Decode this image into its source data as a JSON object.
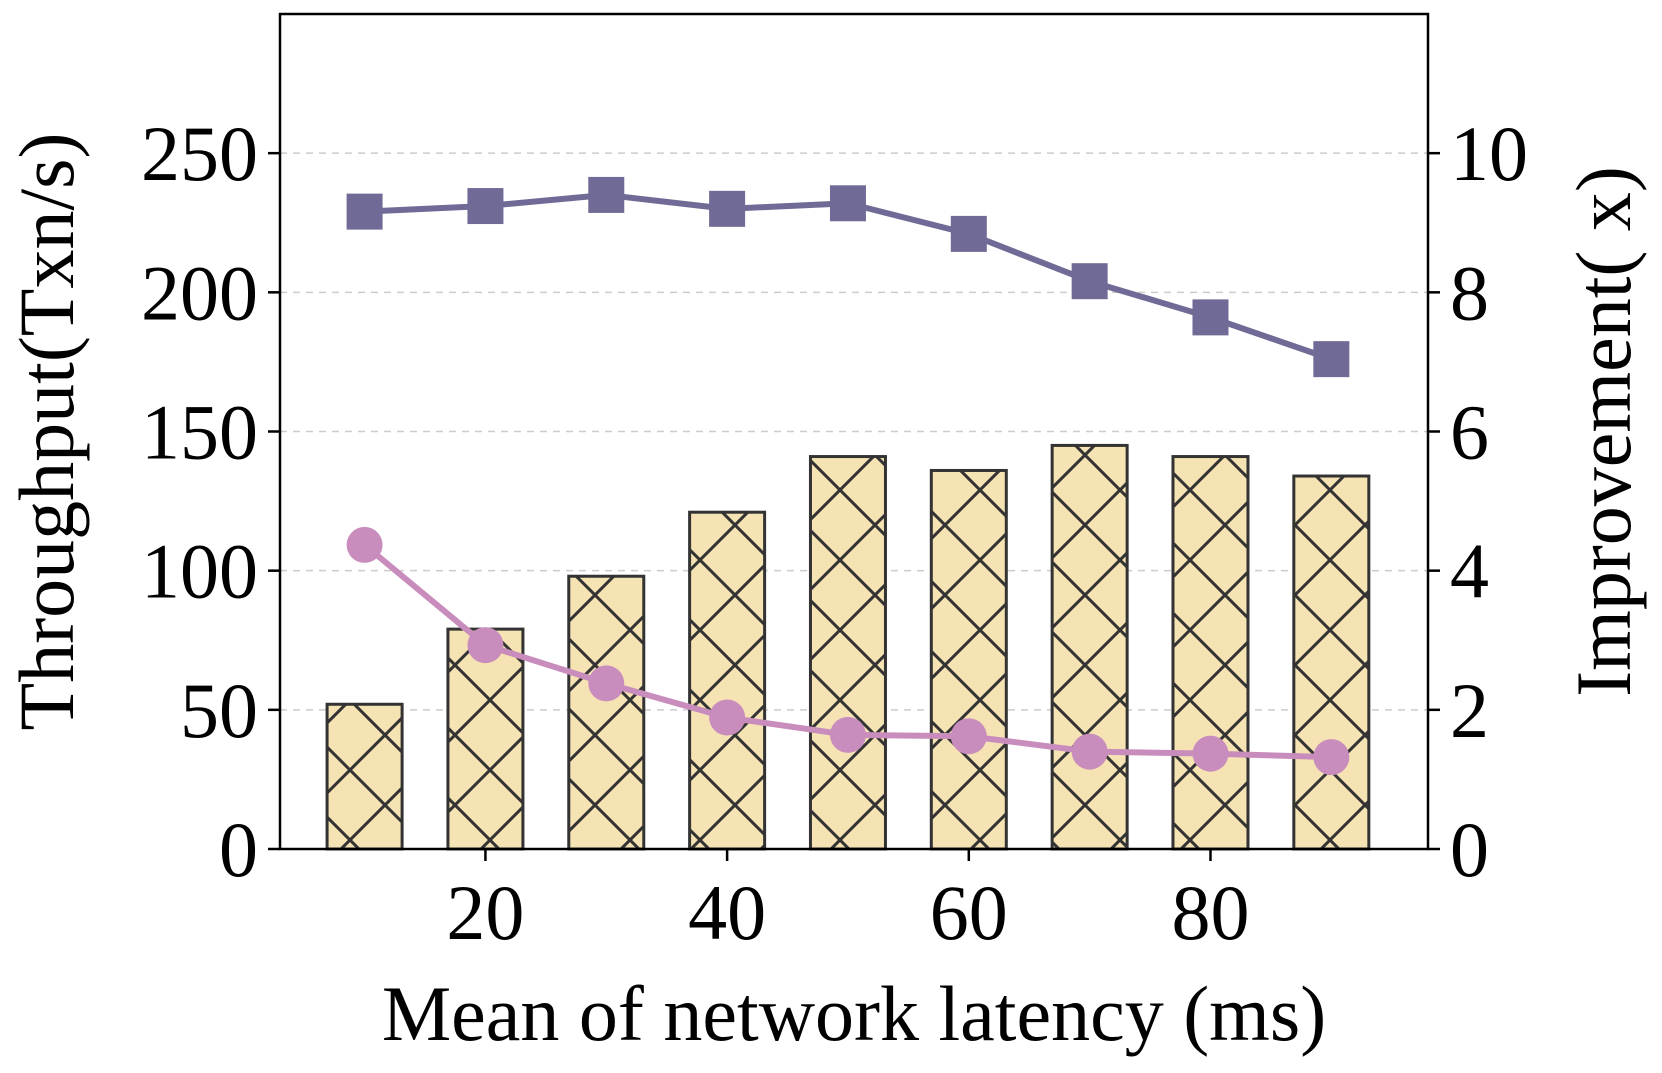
{
  "chart_data": {
    "type": "bar+line",
    "title": "",
    "xlabel": "Mean of network latency (ms)",
    "ylabel_left": "Throughput(Txn/s)",
    "ylabel_right": "Improvement( x)",
    "x": [
      10,
      20,
      30,
      40,
      50,
      60,
      70,
      80,
      90
    ],
    "xlim": [
      3,
      98
    ],
    "xticks": [
      20,
      40,
      60,
      80
    ],
    "ylim_left": [
      0,
      300
    ],
    "yticks_left": [
      0,
      50,
      100,
      150,
      200,
      250
    ],
    "ylim_right": [
      0,
      12
    ],
    "yticks_right": [
      0,
      2,
      4,
      6,
      8,
      10
    ],
    "grid": true,
    "bars": {
      "name": "Throughput",
      "axis": "left",
      "values": [
        52,
        79,
        98,
        121,
        141,
        136,
        145,
        141,
        134
      ],
      "color": "#f6e3b4",
      "edge_color": "#333333",
      "hatch": "x"
    },
    "series": [
      {
        "name": "Throughput (square markers)",
        "axis": "left",
        "marker": "square",
        "color": "#6f6b96",
        "values": [
          229,
          231,
          235,
          230,
          232,
          221,
          204,
          191,
          176
        ]
      },
      {
        "name": "Improvement (circle markers)",
        "axis": "right",
        "marker": "circle",
        "color": "#c98dbd",
        "values": [
          4.37,
          2.93,
          2.38,
          1.89,
          1.64,
          1.62,
          1.4,
          1.37,
          1.32
        ]
      }
    ]
  }
}
